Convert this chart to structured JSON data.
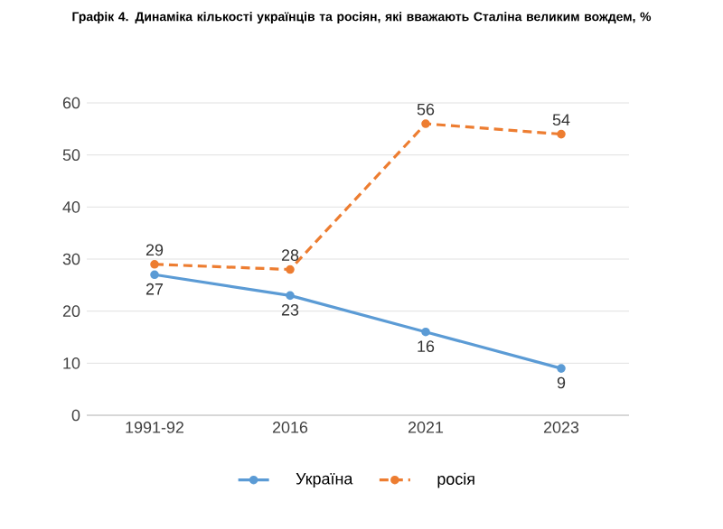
{
  "chart_data": {
    "type": "line",
    "title": "Графік 4. Динаміка кількості українців та росіян, які вважають Сталіна великим вождем, %",
    "categories": [
      "1991-92",
      "2016",
      "2021",
      "2023"
    ],
    "series": [
      {
        "name": "Україна",
        "color": "#5b9bd5",
        "values": [
          27,
          23,
          16,
          9
        ],
        "line_style": "solid"
      },
      {
        "name": "росія",
        "color": "#ed7d31",
        "values": [
          29,
          28,
          56,
          54
        ],
        "line_style": "dashed"
      }
    ],
    "ylim": [
      0,
      60
    ],
    "yticks": [
      0,
      10,
      20,
      30,
      40,
      50,
      60
    ],
    "grid": "y",
    "legend": "bottom",
    "marker": "circle",
    "data_labels": true
  }
}
